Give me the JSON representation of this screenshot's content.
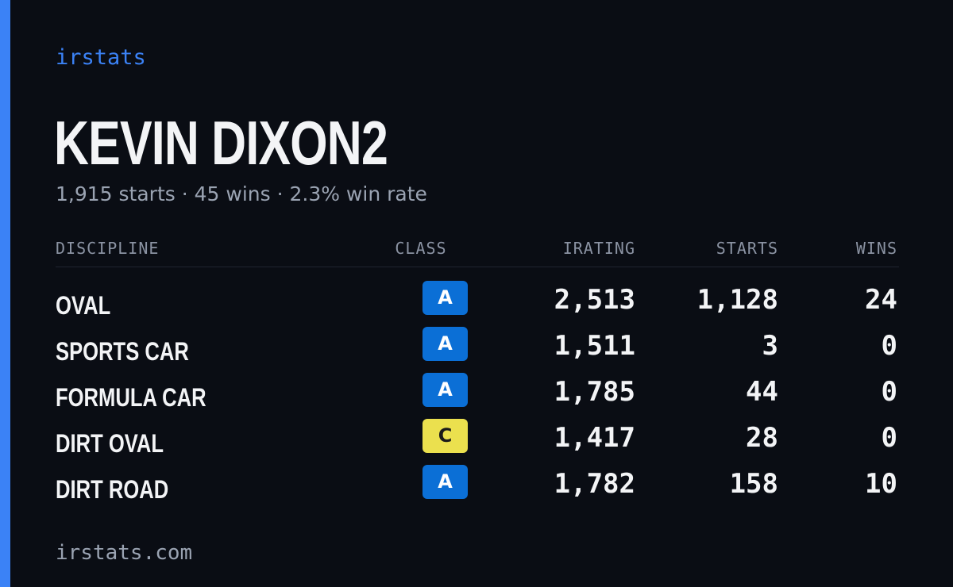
{
  "brand": "irstats",
  "driver": {
    "name": "KEVIN DIXON2",
    "summary": "1,915 starts · 45 wins · 2.3% win rate"
  },
  "table": {
    "headers": {
      "discipline": "DISCIPLINE",
      "class": "CLASS",
      "irating": "IRATING",
      "starts": "STARTS",
      "wins": "WINS"
    },
    "rows": [
      {
        "discipline": "OVAL",
        "class": "A",
        "irating": "2,513",
        "starts": "1,128",
        "wins": "24"
      },
      {
        "discipline": "SPORTS CAR",
        "class": "A",
        "irating": "1,511",
        "starts": "3",
        "wins": "0"
      },
      {
        "discipline": "FORMULA CAR",
        "class": "A",
        "irating": "1,785",
        "starts": "44",
        "wins": "0"
      },
      {
        "discipline": "DIRT OVAL",
        "class": "C",
        "irating": "1,417",
        "starts": "28",
        "wins": "0"
      },
      {
        "discipline": "DIRT ROAD",
        "class": "A",
        "irating": "1,782",
        "starts": "158",
        "wins": "10"
      }
    ]
  },
  "class_colors": {
    "A": {
      "bg": "#0b6fd6",
      "fg": "#ffffff"
    },
    "C": {
      "bg": "#ebe04e",
      "fg": "#1a1a1a"
    }
  },
  "colors": {
    "accent": "#3b82f6",
    "background": "#0a0d14"
  },
  "footer": {
    "url": "irstats.com"
  }
}
